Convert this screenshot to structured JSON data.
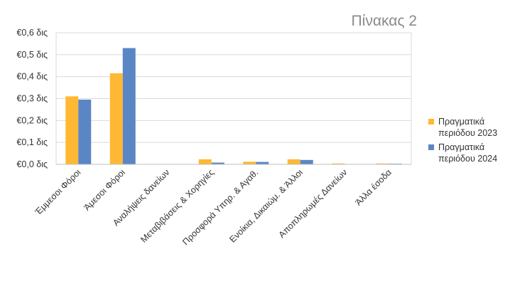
{
  "chart_data": {
    "type": "bar",
    "title": "Πίνακας 2",
    "xlabel": "",
    "ylabel": "",
    "categories": [
      "Έμμεσοι Φόροι",
      "Άμεσοι Φόροι",
      "Αναλήψεις δανείων",
      "Μεταβιβάσεις & Χορηγίες",
      "Προσφορά Υπηρ. & Αγαθ.",
      "Ενοίκια, Δικαιώμ. & Άλλοι",
      "Αποπληρωμές Δανείων",
      "Άλλα έσοδα"
    ],
    "series": [
      {
        "name": "Πραγματικά περιόδου 2023",
        "color": "#ffb833",
        "values": [
          0.31,
          0.415,
          0.0,
          0.023,
          0.012,
          0.023,
          0.004,
          0.004
        ]
      },
      {
        "name": "Πραγματικά περιόδου 2024",
        "color": "#5b86c5",
        "values": [
          0.295,
          0.53,
          0.0,
          0.008,
          0.011,
          0.02,
          0.0,
          0.003
        ]
      }
    ],
    "ylim": [
      0,
      0.6
    ],
    "yticks": [
      0,
      0.1,
      0.2,
      0.3,
      0.4,
      0.5,
      0.6
    ],
    "ytick_labels": [
      "€0,0 δις",
      "€0,1 δις",
      "€0,2 δις",
      "€0,3 δις",
      "€0,4 δις",
      "€0,5 δις",
      "€0,6 δις"
    ],
    "grid": true,
    "legend_position": "right"
  }
}
